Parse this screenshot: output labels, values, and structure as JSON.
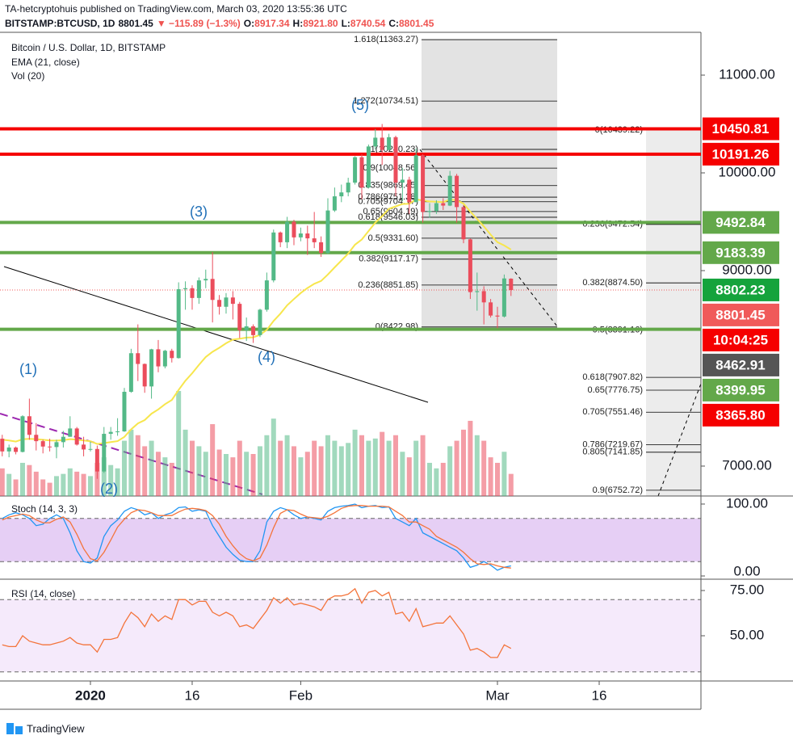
{
  "header": {
    "publisher": "TA-hetcryptohuis published on TradingView.com, March 03, 2020 13:55:36 UTC",
    "quote": [
      {
        "text": "BITSTAMP:BTCUSD, 1D",
        "color": "#131722"
      },
      {
        "text": "8801.45",
        "color": "#131722"
      },
      {
        "text": "▼ −115.89 (−1.3%)",
        "color": "#ef5350"
      },
      {
        "text": "O:",
        "color": "#131722"
      },
      {
        "text": "8917.34",
        "color": "#ef5350"
      },
      {
        "text": "H:",
        "color": "#131722"
      },
      {
        "text": "8921.80",
        "color": "#ef5350"
      },
      {
        "text": "L:",
        "color": "#131722"
      },
      {
        "text": "8740.54",
        "color": "#ef5350"
      },
      {
        "text": "C:",
        "color": "#131722"
      },
      {
        "text": "8801.45",
        "color": "#ef5350"
      }
    ]
  },
  "footer": {
    "brand": "TradingView"
  },
  "chart_data": [
    {
      "type": "candlestick",
      "title": "Bitcoin / U.S. Dollar, 1D, BITSTAMP",
      "up_color": "#53b987",
      "down_color": "#eb4d5c",
      "open": [
        7280,
        7150,
        7190,
        7145,
        7510,
        7320,
        7255,
        7200,
        7195,
        7245,
        7300,
        7385,
        7220,
        7170,
        7175,
        6945,
        7330,
        7350,
        7355,
        7760,
        8155,
        8045,
        7815,
        8195,
        8020,
        8180,
        8105,
        8810,
        8820,
        8720,
        8900,
        8915,
        8700,
        8630,
        8725,
        8660,
        8390,
        8430,
        8340,
        8600,
        8900,
        9390,
        9290,
        9500,
        9340,
        9380,
        9330,
        9290,
        9180,
        9615,
        9760,
        9800,
        9900,
        10160,
        9850,
        10270,
        10360,
        10235,
        10365,
        9900,
        9930,
        9700,
        10180,
        9600,
        9610,
        9690,
        9665,
        9970,
        9650,
        9320,
        8780,
        8790,
        8675,
        8540,
        8530,
        8917.34
      ],
      "high": [
        7320,
        7220,
        7200,
        7520,
        7690,
        7440,
        7270,
        7280,
        7270,
        7360,
        7510,
        7400,
        7300,
        7250,
        7210,
        7400,
        7400,
        7490,
        7800,
        8200,
        8450,
        8050,
        8200,
        8290,
        8190,
        8200,
        8880,
        8890,
        8850,
        8930,
        9010,
        9190,
        8750,
        8770,
        8790,
        8680,
        8520,
        8450,
        8610,
        8980,
        9420,
        9400,
        9550,
        9520,
        9440,
        9460,
        9600,
        9350,
        9740,
        9850,
        9880,
        9950,
        10170,
        10190,
        10290,
        10450,
        10500,
        10400,
        10380,
        10050,
        9960,
        10250,
        10190,
        9690,
        9720,
        9740,
        10020,
        9990,
        9670,
        9330,
        8980,
        8840,
        8710,
        8630,
        8960,
        8921.8
      ],
      "low": [
        7100,
        7090,
        7120,
        7140,
        7270,
        7160,
        7130,
        7150,
        7080,
        7190,
        7300,
        7210,
        7100,
        7150,
        6870,
        6930,
        7270,
        7310,
        7350,
        7750,
        7870,
        7750,
        7690,
        7960,
        8000,
        8060,
        8100,
        8600,
        8600,
        8660,
        8820,
        8470,
        8550,
        8560,
        8500,
        8310,
        8280,
        8260,
        8320,
        8580,
        8880,
        9240,
        9230,
        9260,
        9300,
        9160,
        9230,
        9140,
        9170,
        9600,
        9700,
        9760,
        9880,
        9730,
        9840,
        10240,
        10080,
        10230,
        9760,
        9710,
        9580,
        9700,
        9490,
        9540,
        9580,
        9620,
        9660,
        9490,
        9280,
        8710,
        8590,
        8450,
        8520,
        8410,
        8520,
        8740.54
      ],
      "close": [
        7150,
        7190,
        7145,
        7510,
        7320,
        7255,
        7200,
        7195,
        7245,
        7300,
        7385,
        7220,
        7170,
        7175,
        6945,
        7330,
        7350,
        7355,
        7760,
        8155,
        8045,
        7815,
        8195,
        8020,
        8180,
        8105,
        8810,
        8820,
        8720,
        8900,
        8915,
        8700,
        8630,
        8725,
        8660,
        8390,
        8430,
        8340,
        8600,
        8900,
        9390,
        9290,
        9500,
        9340,
        9380,
        9330,
        9290,
        9180,
        9615,
        9760,
        9800,
        9900,
        10160,
        9850,
        10270,
        10360,
        10235,
        10365,
        9900,
        9930,
        9700,
        10180,
        9600,
        9610,
        9690,
        9665,
        9970,
        9650,
        9320,
        8780,
        8790,
        8675,
        8540,
        8530,
        8920,
        8801.45
      ],
      "volume": {
        "name": "Vol (20)",
        "values": [
          25,
          20,
          15,
          30,
          28,
          22,
          15,
          12,
          18,
          20,
          25,
          22,
          20,
          18,
          30,
          35,
          28,
          25,
          50,
          60,
          55,
          45,
          50,
          40,
          35,
          30,
          95,
          60,
          50,
          45,
          40,
          65,
          42,
          38,
          35,
          50,
          40,
          38,
          45,
          55,
          70,
          50,
          55,
          45,
          35,
          40,
          50,
          45,
          55,
          50,
          45,
          48,
          60,
          55,
          50,
          52,
          58,
          50,
          55,
          40,
          35,
          50,
          55,
          30,
          25,
          30,
          45,
          50,
          60,
          68,
          55,
          50,
          35,
          30,
          40,
          20
        ]
      },
      "ema": {
        "name": "EMA (21, close)",
        "color": "#f7e64d",
        "values": [
          7270,
          7262,
          7251,
          7274,
          7278,
          7276,
          7269,
          7262,
          7261,
          7265,
          7276,
          7271,
          7262,
          7254,
          7226,
          7235,
          7245,
          7255,
          7299,
          7376,
          7437,
          7471,
          7536,
          7580,
          7634,
          7677,
          7779,
          7873,
          7950,
          8036,
          8116,
          8169,
          8211,
          8257,
          8294,
          8303,
          8315,
          8317,
          8343,
          8394,
          8485,
          8559,
          8645,
          8709,
          8771,
          8822,
          8865,
          8894,
          8960,
          9033,
          9103,
          9175,
          9265,
          9318,
          9405,
          9491,
          9558,
          9632,
          9657,
          9682,
          9684,
          9729,
          9717,
          9707,
          9705,
          9701,
          9726,
          9720,
          9685,
          9603,
          9529,
          9452,
          9368,
          9291,
          9257,
          9215
        ]
      },
      "ylim": [
        6694,
        11438
      ],
      "yticks": [
        {
          "value": 11000,
          "label": "11000.00"
        },
        {
          "value": 10000,
          "label": "10000.00"
        },
        {
          "value": 9000,
          "label": "9000.00"
        },
        {
          "value": 7000,
          "label": "7000.00"
        }
      ],
      "xlim": [
        -0.33,
        103
      ],
      "xticks": [
        {
          "value": 13,
          "label": "2020"
        },
        {
          "value": 28,
          "label": "16"
        },
        {
          "value": 44,
          "label": "Feb"
        },
        {
          "value": 73,
          "label": "Mar"
        },
        {
          "value": 88,
          "label": "16"
        }
      ],
      "price_labels": [
        {
          "value": 10450.81,
          "label": "10450.81",
          "color": "#f50000",
          "line": true
        },
        {
          "value": 10191.26,
          "label": "10191.26",
          "color": "#f50000",
          "line": true
        },
        {
          "value": 9492.84,
          "label": "9492.84",
          "color": "#63a84a",
          "line": true
        },
        {
          "value": 9183.39,
          "label": "9183.39",
          "color": "#63a84a",
          "line": true
        },
        {
          "value": 8802.23,
          "label": "8802.23",
          "color": "#15a33c",
          "line": false
        },
        {
          "value": 8801.45,
          "label": "8801.45",
          "color": "#f05a5a",
          "line": false,
          "dotted": true,
          "countdown": "10:04:25",
          "countdown_color": "#f50000"
        },
        {
          "value": 8462.91,
          "label": "8462.91",
          "color": "#555555",
          "line": false
        },
        {
          "value": 8399.95,
          "label": "8399.95",
          "color": "#63a84a",
          "line": true
        },
        {
          "value": 8365.8,
          "label": "8365.80",
          "color": "#f50000",
          "line": false
        }
      ],
      "fib_left": [
        {
          "value": 11363.27,
          "label": "1.618(11363.27)"
        },
        {
          "value": 10734.51,
          "label": "1.272(10734.51)"
        },
        {
          "value": 10240.23,
          "label": "1(10240.23)"
        },
        {
          "value": 10048.56,
          "label": "0.9(10048.56)"
        },
        {
          "value": 9869.45,
          "label": "0.835(9869.45)"
        },
        {
          "value": 9751.38,
          "label": "0.786(9751.38)"
        },
        {
          "value": 9704.17,
          "label": "0.705(9704.17)"
        },
        {
          "value": 9604.19,
          "label": "0.65(9604.19)"
        },
        {
          "value": 9546.03,
          "label": "0.618(9546.03)"
        },
        {
          "value": 9331.6,
          "label": "0.5(9331.60)"
        },
        {
          "value": 9117.17,
          "label": "0.382(9117.17)"
        },
        {
          "value": 8851.85,
          "label": "0.236(8851.85)"
        },
        {
          "value": 8422.98,
          "label": "0(8422.98)"
        }
      ],
      "fib_right": [
        {
          "value": 10439.22,
          "label": "0(10439.22)"
        },
        {
          "value": 9472.54,
          "label": "0.236(9472.54)"
        },
        {
          "value": 8874.5,
          "label": "0.382(8874.50)"
        },
        {
          "value": 8391.16,
          "label": "0.5(8391.16)"
        },
        {
          "value": 7907.82,
          "label": "0.618(7907.82)"
        },
        {
          "value": 7776.75,
          "label": "0.65(7776.75)"
        },
        {
          "value": 7551.46,
          "label": "0.705(7551.46)"
        },
        {
          "value": 7219.67,
          "label": "0.786(7219.67)"
        },
        {
          "value": 7141.85,
          "label": "0.805(7141.85)"
        },
        {
          "value": 6752.72,
          "label": "0.9(6752.72)"
        }
      ],
      "waves": [
        "(1)",
        "(2)",
        "(3)",
        "(4)",
        "(5)"
      ]
    },
    {
      "type": "line",
      "title": "Stoch (14, 3, 3)",
      "ylim": [
        -4.5,
        111.2
      ],
      "yticks": [
        {
          "value": 100,
          "label": "100.00"
        },
        {
          "value": 0,
          "label": "0.00"
        }
      ],
      "band": [
        20,
        80
      ],
      "band_color": "#e0c3f3",
      "series": [
        {
          "color": "#2196f3",
          "values": [
            80,
            85,
            88,
            85,
            80,
            70,
            72,
            80,
            85,
            80,
            60,
            35,
            20,
            18,
            25,
            55,
            70,
            78,
            90,
            95,
            92,
            85,
            88,
            80,
            85,
            88,
            95,
            96,
            90,
            92,
            90,
            70,
            55,
            40,
            30,
            22,
            20,
            20,
            35,
            75,
            90,
            95,
            92,
            85,
            80,
            82,
            80,
            78,
            90,
            95,
            97,
            98,
            100,
            95,
            97,
            98,
            95,
            96,
            80,
            75,
            70,
            80,
            60,
            55,
            50,
            45,
            40,
            35,
            25,
            12,
            15,
            20,
            15,
            8,
            12,
            14
          ]
        },
        {
          "color": "#f4743b",
          "values": [
            78,
            82,
            84,
            86,
            84,
            78,
            74,
            74,
            79,
            82,
            75,
            58,
            38,
            24,
            21,
            33,
            50,
            68,
            79,
            88,
            92,
            91,
            88,
            84,
            84,
            84,
            89,
            93,
            94,
            93,
            91,
            84,
            72,
            55,
            42,
            31,
            24,
            21,
            25,
            43,
            67,
            87,
            92,
            91,
            86,
            82,
            81,
            80,
            83,
            88,
            94,
            97,
            98,
            98,
            97,
            97,
            97,
            96,
            90,
            84,
            75,
            75,
            70,
            65,
            55,
            50,
            45,
            40,
            33,
            24,
            17,
            16,
            17,
            14,
            12,
            11
          ]
        }
      ]
    },
    {
      "type": "line",
      "title": "RSI (14, close)",
      "ylim": [
        25,
        81.25
      ],
      "yticks": [
        {
          "value": 75,
          "label": "75.00"
        },
        {
          "value": 50,
          "label": "50.00"
        }
      ],
      "band": [
        30,
        70
      ],
      "band_color": "#f3e5fa",
      "series": [
        {
          "color": "#f4743b",
          "values": [
            45,
            44,
            44,
            50,
            47,
            46,
            45,
            45,
            46,
            47,
            49,
            46,
            45,
            45,
            41,
            48,
            48,
            49,
            57,
            63,
            60,
            55,
            62,
            58,
            61,
            59,
            70,
            70,
            67,
            69,
            69,
            63,
            61,
            63,
            61,
            55,
            56,
            54,
            59,
            64,
            71,
            68,
            71,
            67,
            68,
            67,
            66,
            64,
            70,
            72,
            72,
            73,
            76,
            68,
            74,
            75,
            72,
            74,
            62,
            63,
            58,
            65,
            55,
            56,
            57,
            57,
            61,
            56,
            51,
            42,
            43,
            41,
            38,
            38,
            45,
            43
          ]
        }
      ]
    }
  ]
}
